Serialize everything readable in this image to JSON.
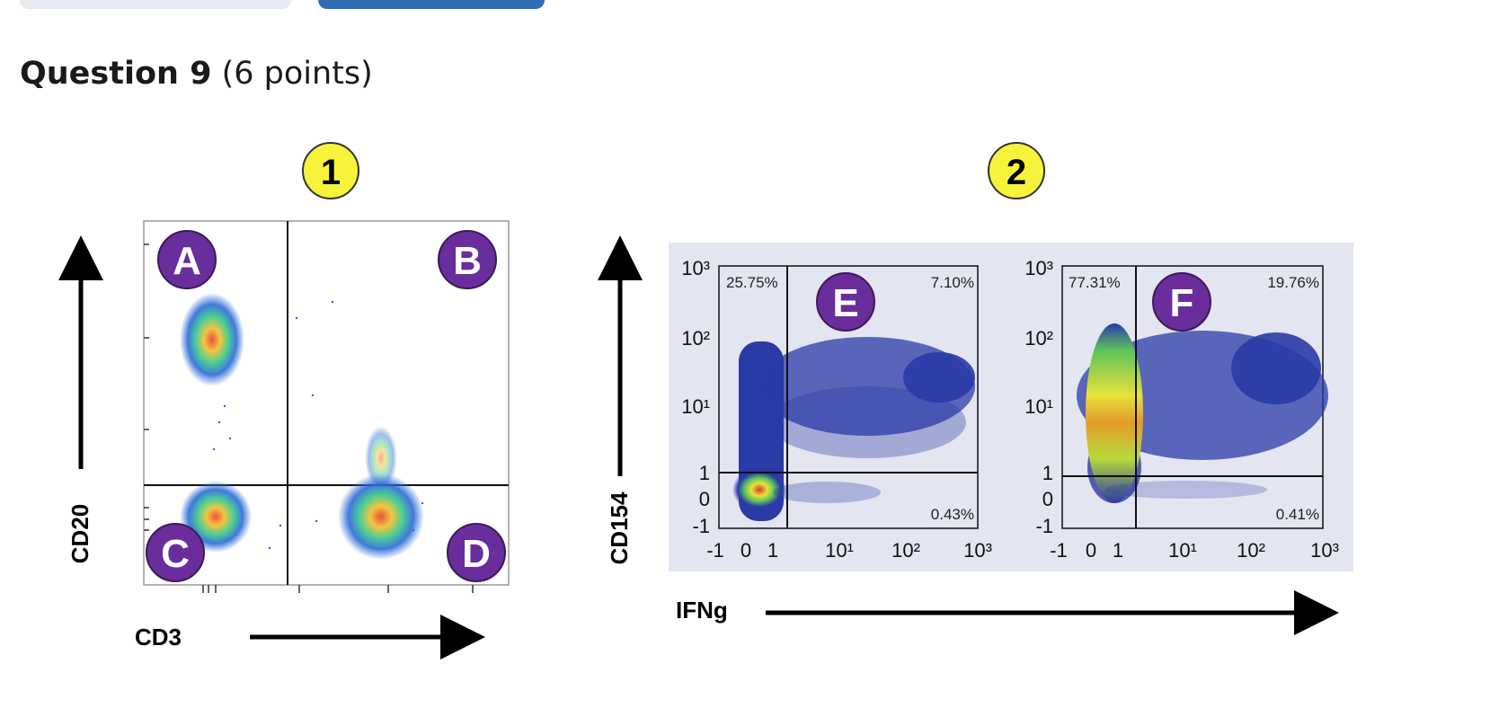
{
  "question": {
    "title": "Question 9",
    "points": "(6 points)"
  },
  "panel1": {
    "badge": "1",
    "x_label": "CD3",
    "y_label": "CD20",
    "quadrants": [
      "A",
      "B",
      "C",
      "D"
    ]
  },
  "panel2": {
    "badge": "2",
    "x_label": "IFNg",
    "y_label": "CD154",
    "plots": [
      {
        "letter": "E",
        "top_left_pct": "25.75%",
        "top_right_pct": "7.10%",
        "bottom_right_pct": "0.43%"
      },
      {
        "letter": "F",
        "top_left_pct": "77.31%",
        "top_right_pct": "19.76%",
        "bottom_right_pct": "0.41%"
      }
    ],
    "y_ticks": [
      "10³",
      "10²",
      "10¹",
      "1",
      "0",
      "-1"
    ],
    "x_ticks": [
      "-1",
      "0",
      "1",
      "10¹",
      "10²",
      "10³"
    ]
  },
  "colors": {
    "badge_purple": "#6a2d9c",
    "badge_yellow": "#f7f33a",
    "panel_bg": "#e3e5f1",
    "dot_blue": "#2a3aa6",
    "primary_button": "#2f6db5"
  }
}
